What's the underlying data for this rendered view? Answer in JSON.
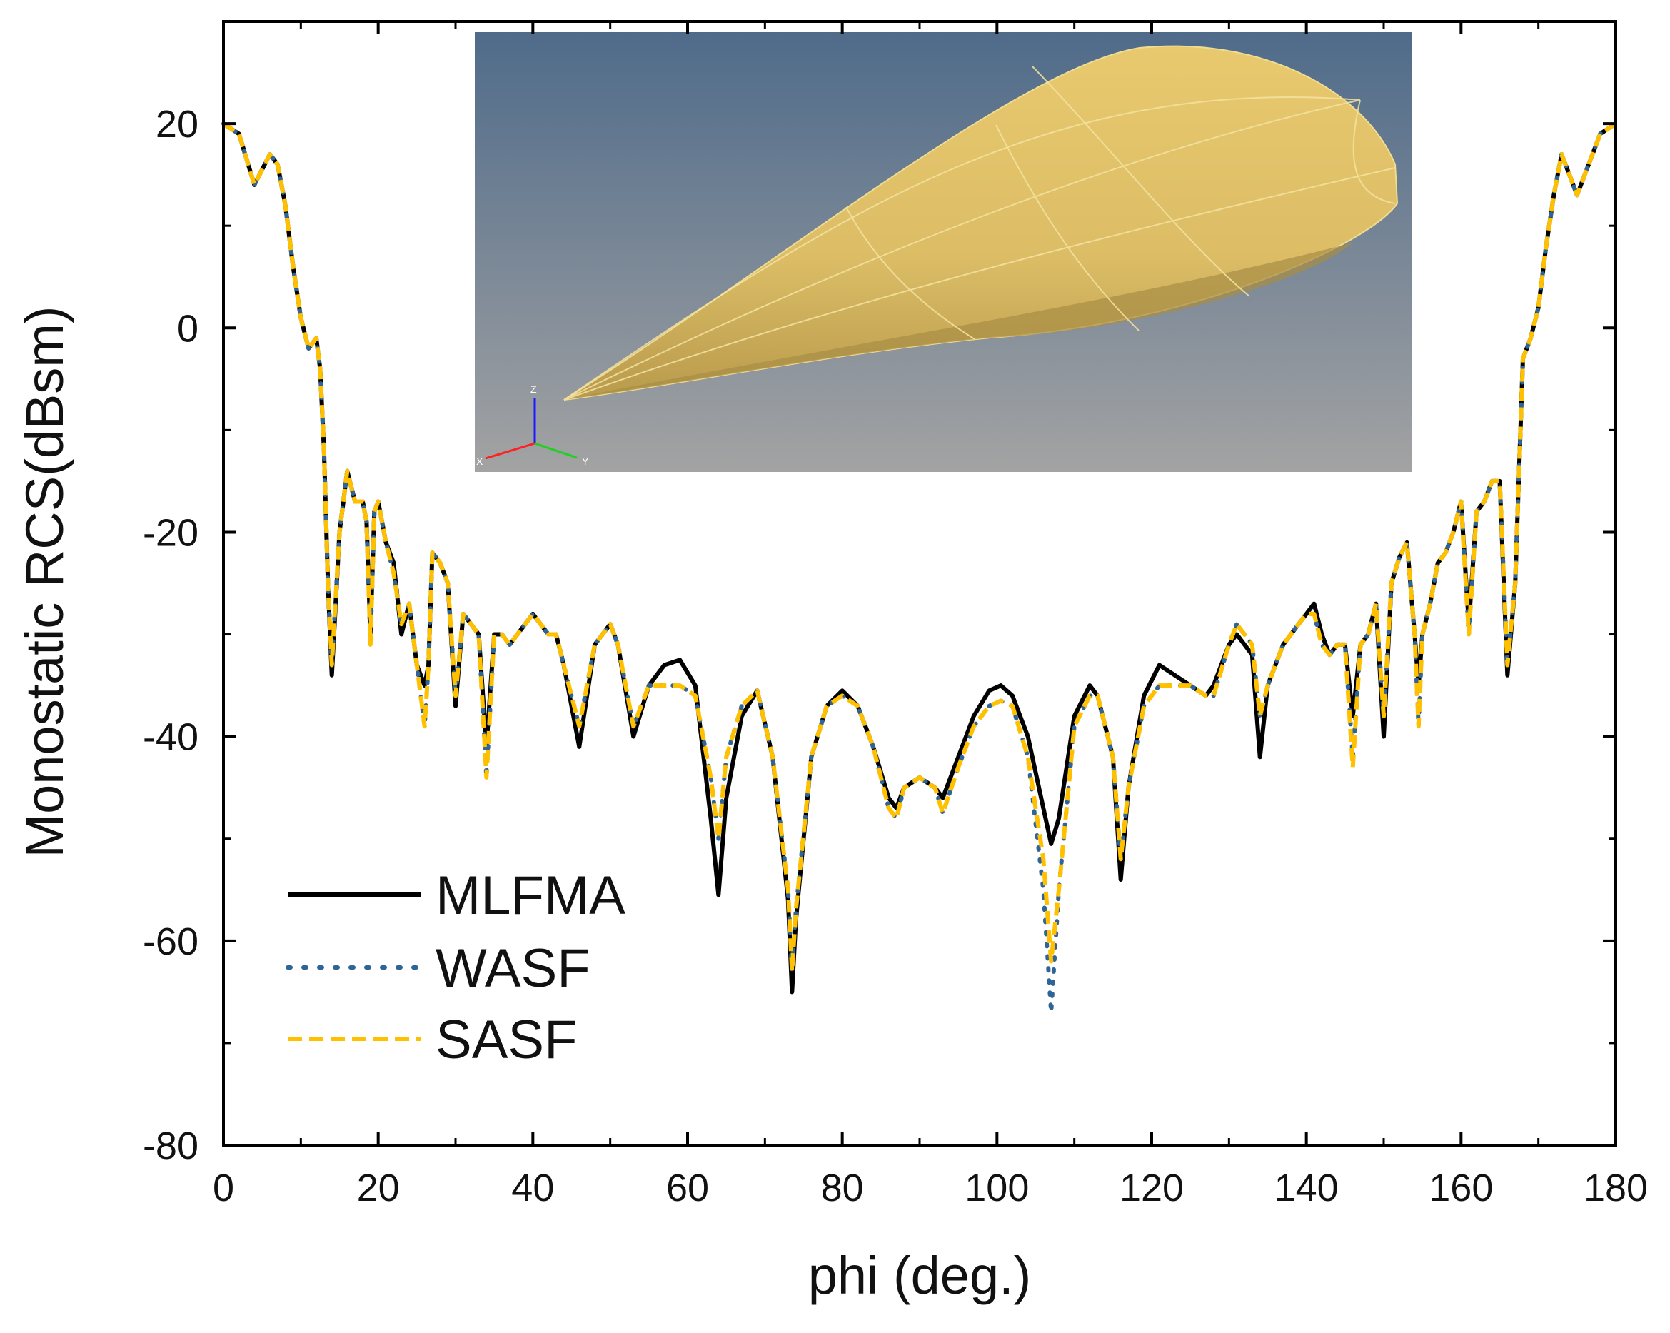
{
  "chart_data": {
    "type": "line",
    "title": "",
    "xlabel": "phi (deg.)",
    "ylabel": "Monostatic RCS(dBsm)",
    "xlim": [
      0,
      180
    ],
    "ylim": [
      -80,
      30
    ],
    "xticks": [
      0,
      20,
      40,
      60,
      80,
      100,
      120,
      140,
      160,
      180
    ],
    "yticks": [
      -80,
      -60,
      -40,
      -20,
      0,
      20
    ],
    "grid": false,
    "legend_position": "bottom-left",
    "x": [
      0,
      2,
      4,
      6,
      7,
      8,
      9,
      10,
      11,
      12,
      12.5,
      13,
      13.5,
      14,
      15,
      16,
      17,
      18,
      18.5,
      19,
      19.5,
      20,
      21,
      22,
      23,
      24,
      25,
      26,
      26.5,
      27,
      28,
      29,
      30,
      31,
      32,
      33,
      34,
      35,
      36,
      37,
      38,
      39,
      40,
      41,
      42,
      43,
      44,
      46,
      48,
      50,
      51,
      53,
      55,
      57,
      59,
      61,
      63,
      64,
      65,
      67,
      69,
      71,
      73,
      73.5,
      74,
      76,
      78,
      80,
      82,
      84,
      86,
      87,
      88,
      90,
      92,
      93,
      95,
      97,
      99,
      100.5,
      102,
      104,
      106,
      107,
      108,
      110,
      112,
      113,
      115,
      116,
      117,
      119,
      121,
      123,
      125,
      127,
      128,
      130,
      131,
      133,
      134,
      135,
      137,
      139,
      140,
      141,
      142,
      143,
      144,
      145,
      146,
      147,
      148,
      149,
      150,
      151,
      152,
      153,
      154,
      154.5,
      155,
      156,
      157,
      158,
      159,
      160,
      161,
      162,
      163,
      164,
      165,
      166,
      167,
      168,
      169,
      170,
      171,
      172,
      173,
      174,
      175,
      176,
      177,
      178,
      180
    ],
    "series": [
      {
        "name": "MLFMA",
        "color": "#000000",
        "style": "solid",
        "values": [
          20,
          19,
          14,
          17,
          16,
          12,
          6,
          1,
          -2,
          -1,
          -4,
          -12,
          -25,
          -34,
          -20,
          -14,
          -17,
          -17,
          -19,
          -30,
          -18,
          -17,
          -21,
          -23,
          -30,
          -27,
          -33,
          -35,
          -33,
          -22,
          -23,
          -25,
          -37,
          -28,
          -29,
          -30,
          -41,
          -30,
          -30,
          -31,
          -30,
          -29,
          -28,
          -29,
          -30,
          -30,
          -33,
          -41,
          -31,
          -29,
          -31,
          -40,
          -35,
          -33,
          -32.5,
          -35,
          -48,
          -55.5,
          -46,
          -38,
          -35.5,
          -42,
          -56,
          -65,
          -58,
          -42,
          -37,
          -35.5,
          -37,
          -41,
          -46,
          -47,
          -45,
          -44,
          -45,
          -46,
          -42,
          -38,
          -35.5,
          -35,
          -36,
          -40,
          -47,
          -50.5,
          -48,
          -38,
          -35,
          -36,
          -42,
          -54,
          -45,
          -36,
          -33,
          -34,
          -35,
          -36,
          -35,
          -31,
          -30,
          -32,
          -42,
          -35,
          -31,
          -29,
          -28,
          -27,
          -30,
          -32,
          -31,
          -31,
          -38,
          -31,
          -30,
          -27,
          -40,
          -25,
          -22.5,
          -21,
          -30,
          -35,
          -30,
          -27,
          -23,
          -22,
          -20,
          -17,
          -29,
          -18,
          -17,
          -15,
          -15,
          -34,
          -25,
          -3,
          -1,
          2,
          8,
          13,
          17,
          15,
          13,
          15,
          17,
          19,
          20
        ]
      },
      {
        "name": "WASF",
        "color": "#2f6496",
        "style": "dotted",
        "values": [
          20,
          19,
          14,
          17,
          16,
          12,
          6,
          1,
          -2,
          -1,
          -4,
          -12,
          -25,
          -33,
          -20,
          -14,
          -17,
          -17,
          -19,
          -31,
          -18,
          -17,
          -21,
          -24,
          -29,
          -27,
          -33,
          -39,
          -33,
          -22,
          -23,
          -25,
          -36,
          -28,
          -29,
          -30,
          -44,
          -30,
          -30,
          -31,
          -30,
          -29,
          -28,
          -29,
          -30,
          -30,
          -33,
          -39,
          -31,
          -29,
          -31,
          -39,
          -35,
          -35,
          -35,
          -36,
          -44,
          -50,
          -42,
          -37,
          -35.5,
          -42,
          -55,
          -63,
          -57,
          -42,
          -37,
          -36,
          -37,
          -41,
          -47,
          -48,
          -45,
          -44,
          -45,
          -47.5,
          -43,
          -39,
          -37,
          -36.5,
          -37,
          -42,
          -55,
          -67,
          -55,
          -39,
          -36,
          -36,
          -42,
          -52,
          -45,
          -37,
          -35,
          -35,
          -35,
          -36,
          -36,
          -31,
          -29,
          -31,
          -38,
          -35,
          -31,
          -29,
          -28,
          -28,
          -31,
          -32,
          -31,
          -31,
          -42,
          -31,
          -30,
          -27,
          -38,
          -25,
          -22.5,
          -21,
          -30,
          -39,
          -30,
          -27,
          -23,
          -22,
          -20,
          -17,
          -30,
          -18,
          -17,
          -15,
          -15,
          -33,
          -25,
          -3,
          -1,
          2,
          8,
          13,
          17,
          15,
          13,
          15,
          17,
          19,
          20
        ]
      },
      {
        "name": "SASF",
        "color": "#ffc000",
        "style": "dashed",
        "values": [
          20,
          19,
          14,
          17,
          16,
          12,
          6,
          1,
          -2,
          -1,
          -4,
          -12,
          -25,
          -33,
          -20,
          -14,
          -17,
          -17,
          -19,
          -31,
          -18,
          -17,
          -21,
          -24,
          -29,
          -27,
          -33,
          -39,
          -33,
          -22,
          -23,
          -25,
          -36,
          -28,
          -29,
          -30,
          -44,
          -30,
          -30,
          -31,
          -30,
          -29,
          -28,
          -29,
          -30,
          -30,
          -33,
          -39,
          -31,
          -29,
          -31,
          -39,
          -35,
          -35,
          -35,
          -36,
          -44,
          -50,
          -42,
          -37,
          -35.5,
          -42,
          -55,
          -63,
          -57,
          -42,
          -37,
          -36,
          -37,
          -41,
          -47,
          -48,
          -45,
          -44,
          -45,
          -47.5,
          -43,
          -39,
          -37,
          -36.5,
          -37,
          -42,
          -52,
          -62,
          -55,
          -39,
          -36,
          -36,
          -42,
          -52,
          -45,
          -37,
          -35,
          -35,
          -35,
          -36,
          -36,
          -31,
          -29,
          -31,
          -38,
          -35,
          -31,
          -29,
          -28,
          -28,
          -31,
          -32,
          -31,
          -31,
          -43,
          -31,
          -30,
          -27,
          -38,
          -25,
          -22.5,
          -21,
          -30,
          -39,
          -30,
          -27,
          -23,
          -22,
          -20,
          -17,
          -30,
          -18,
          -17,
          -15,
          -15,
          -33,
          -25,
          -3,
          -1,
          2,
          8,
          13,
          17,
          15,
          13,
          15,
          17,
          19,
          20
        ]
      }
    ],
    "inset": {
      "axis_labels": [
        "Z",
        "Y",
        "X"
      ],
      "background_top": "#4f6b8a",
      "background_bottom": "#a3a3a3",
      "body_color": "#e3c46b"
    }
  }
}
